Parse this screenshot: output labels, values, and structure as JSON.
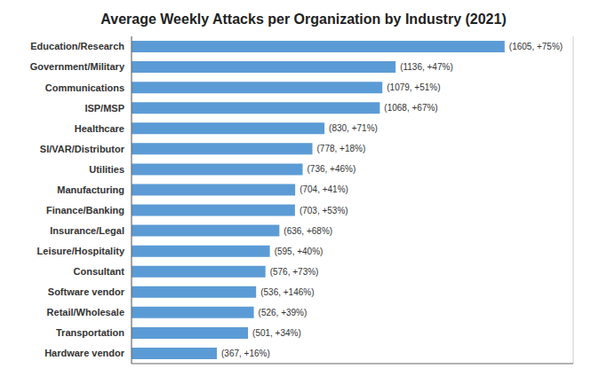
{
  "chart_data": {
    "type": "bar",
    "title": "Average Weekly Attacks per Organization by Industry (2021)",
    "orientation": "horizontal",
    "categories": [
      "Education/Research",
      "Government/Military",
      "Communications",
      "ISP/MSP",
      "Healthcare",
      "SI/VAR/Distributor",
      "Utilities",
      "Manufacturing",
      "Finance/Banking",
      "Insurance/Legal",
      "Leisure/Hospitality",
      "Consultant",
      "Software vendor",
      "Retail/Wholesale",
      "Transportation",
      "Hardware vendor"
    ],
    "values": [
      1605,
      1136,
      1079,
      1068,
      830,
      778,
      736,
      704,
      703,
      636,
      595,
      576,
      536,
      526,
      501,
      367
    ],
    "value_labels": [
      "(1605, +75%)",
      "(1136, +47%)",
      "(1079, +51%)",
      "(1068, +67%)",
      "(830, +71%)",
      "(778, +18%)",
      "(736, +46%)",
      "(704, +41%)",
      "(703, +53%)",
      "(636, +68%)",
      "(595, +40%)",
      "(576, +73%)",
      "(536, +146%)",
      "(526, +39%)",
      "(501, +34%)",
      "(367, +16%)"
    ],
    "color": "#5B9BD5",
    "xlim": [
      0,
      1900
    ],
    "xticks": [
      0,
      200,
      400,
      600,
      800,
      1000,
      1200,
      1400,
      1600,
      1800
    ],
    "grid": true,
    "data_labels": true,
    "tick_labels": "y"
  }
}
